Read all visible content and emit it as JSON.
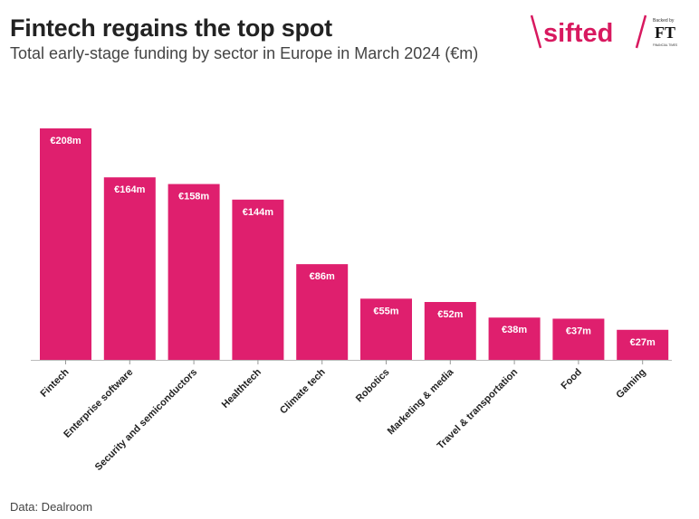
{
  "header": {
    "title": "Fintech regains the top spot",
    "subtitle": "Total early-stage funding by sector in Europe in March 2024 (€m)"
  },
  "footer": {
    "source": "Data: Dealroom"
  },
  "logo": {
    "brand": "sifted",
    "backed_by": "Backed by",
    "ft_mark": "FT",
    "ft_name": "FINANCIAL TIMES",
    "brand_color": "#d8195f"
  },
  "colors": {
    "bar": "#df1f6e",
    "text": "#222222"
  },
  "chart_data": {
    "type": "bar",
    "title": "Fintech regains the top spot",
    "subtitle": "Total early-stage funding by sector in Europe in March 2024 (€m)",
    "categories": [
      "Fintech",
      "Enterprise software",
      "Security and semiconductors",
      "Healthtech",
      "Climate tech",
      "Robotics",
      "Marketing & media",
      "Travel & transportation",
      "Food",
      "Gaming"
    ],
    "values": [
      208,
      164,
      158,
      144,
      86,
      55,
      52,
      38,
      37,
      27
    ],
    "labels": [
      "€208m",
      "€164m",
      "€158m",
      "€144m",
      "€86m",
      "€55m",
      "€52m",
      "€38m",
      "€37m",
      "€27m"
    ],
    "ylim": [
      0,
      208
    ],
    "grid": false,
    "legend": "none"
  }
}
